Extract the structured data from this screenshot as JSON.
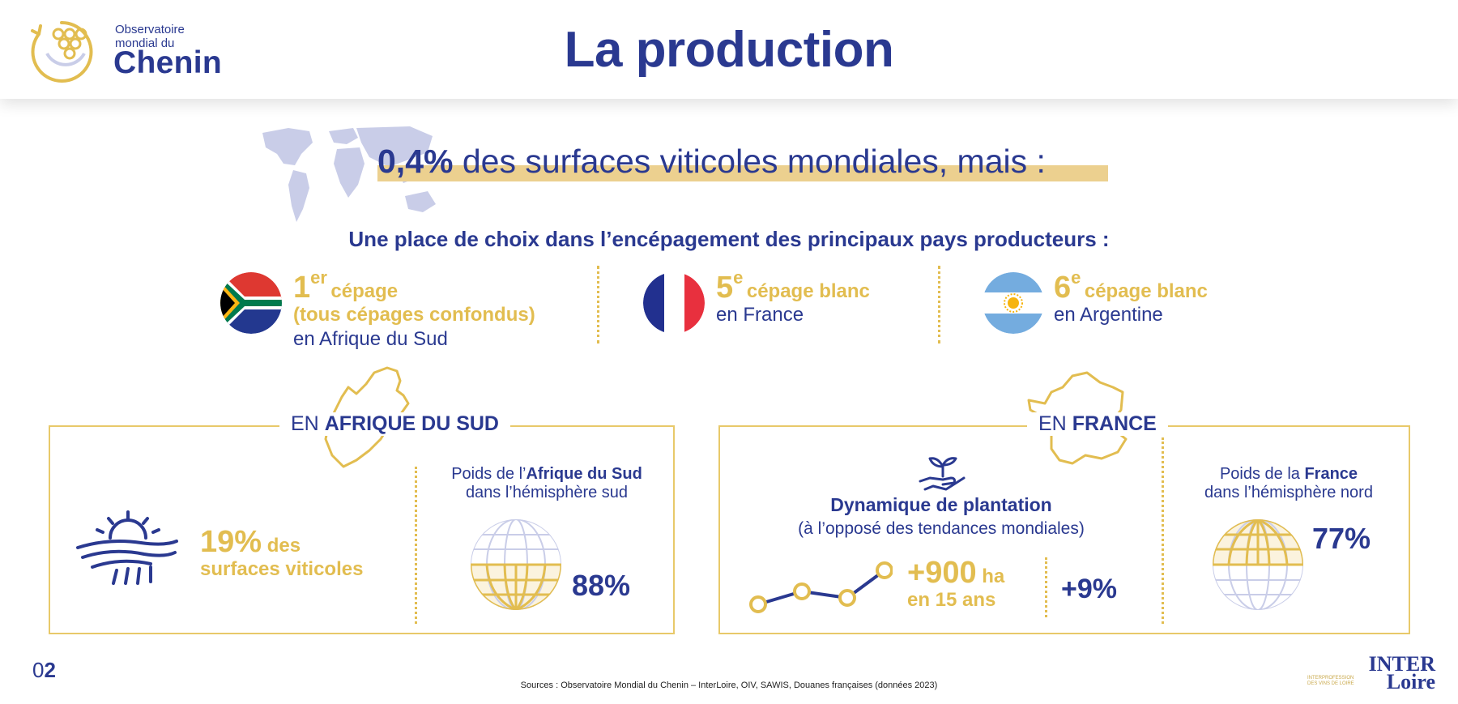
{
  "logo": {
    "line1": "Observatoire",
    "line2": "mondial du",
    "main": "Chenin"
  },
  "title": "La production",
  "hero": {
    "percent": "0,4%",
    "text": " des surfaces viticoles mondiales, mais :"
  },
  "subtitle": "Une place de choix dans l’encépagement des principaux pays producteurs :",
  "rankings": [
    {
      "num": "1",
      "sup": "er",
      "tag": "cépage",
      "tag2": "(tous cépages confondus)",
      "line": "en Afrique du Sud",
      "flag": "south-africa-flag"
    },
    {
      "num": "5",
      "sup": "e",
      "tag": "cépage blanc",
      "line": "en France",
      "flag": "france-flag"
    },
    {
      "num": "6",
      "sup": "e",
      "tag": "cépage blanc",
      "line": "en Argentine",
      "flag": "argentina-flag"
    }
  ],
  "south_africa": {
    "title_prefix": "EN ",
    "title_bold": "AFRIQUE DU SUD",
    "stat_pct": "19%",
    "stat_des": " des",
    "stat_line2": "surfaces viticoles",
    "weight_pre": "Poids de l’",
    "weight_bold": "Afrique du Sud",
    "weight_line2": "dans l’hémisphère sud",
    "weight_value": "88%"
  },
  "france": {
    "title_prefix": "EN ",
    "title_bold": "FRANCE",
    "dyn_title": "Dynamique de plantation",
    "dyn_sub": "(à l’opposé des tendances mondiales)",
    "plus_ha": "+900",
    "ha": " ha",
    "years": "en 15 ans",
    "pct": "+9%",
    "weight_pre": "Poids de la ",
    "weight_bold": "France",
    "weight_line2": "dans l’hémisphère nord",
    "weight_value": "77%"
  },
  "footer": {
    "source": "Sources : Observatoire Mondial du Chenin – InterLoire, OIV, SAWIS, Douanes françaises (données 2023)",
    "page_prefix": "0",
    "page_bold": "2",
    "brand_top": "INTER",
    "brand_bottom": "Loire",
    "brand_small1": "INTERPROFESSION",
    "brand_small2": "DES VINS DE LOIRE"
  },
  "colors": {
    "navy": "#2a3990",
    "gold": "#e2bd50",
    "highlight": "#ecd08f",
    "map": "#c9cde8"
  }
}
